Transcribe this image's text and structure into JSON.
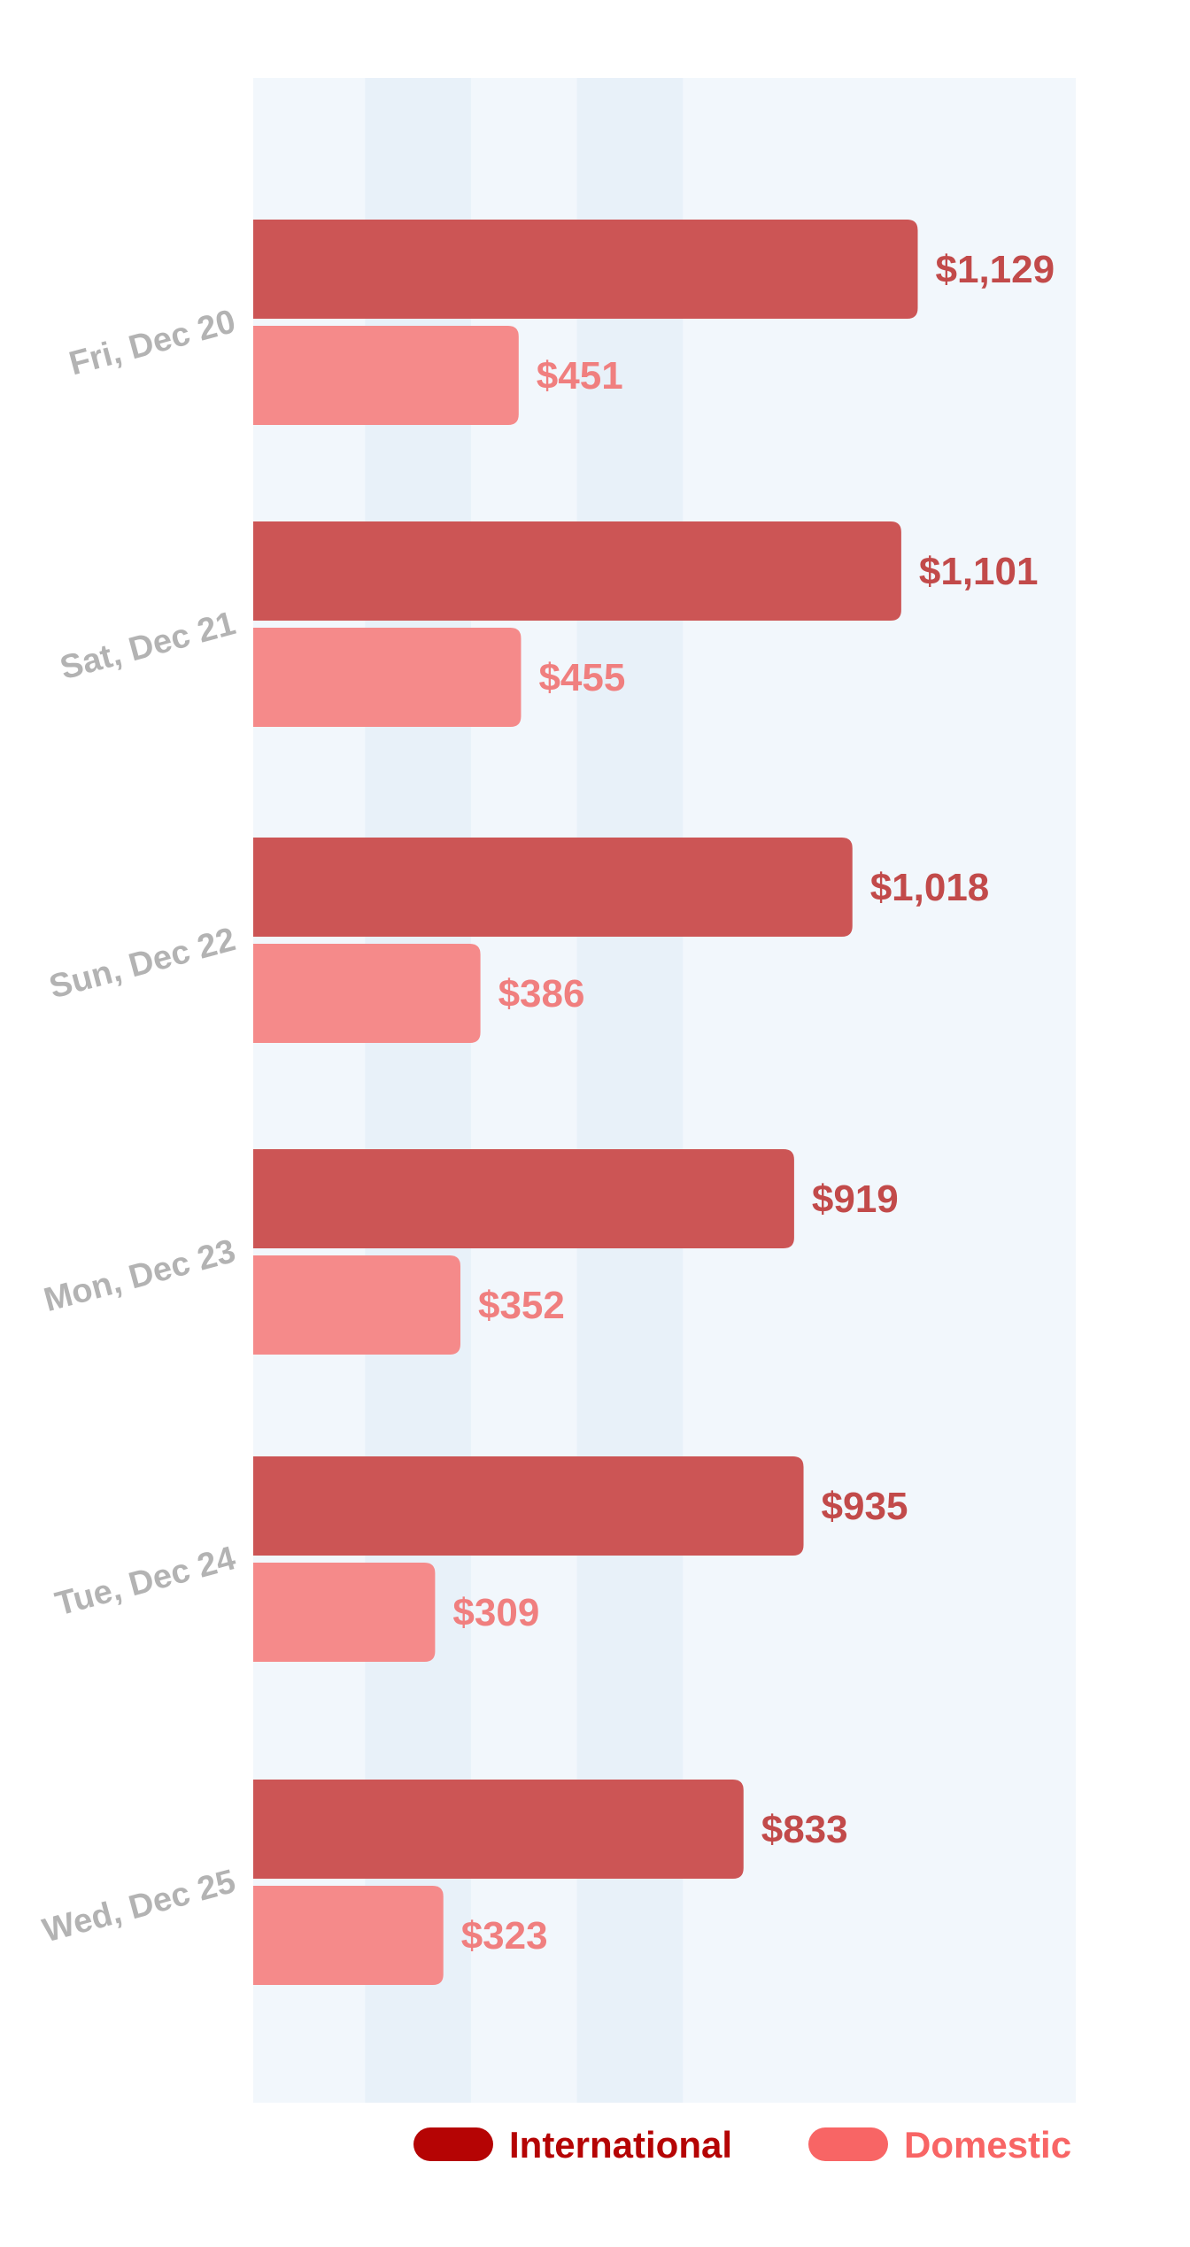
{
  "chart_data": {
    "type": "bar",
    "orientation": "horizontal",
    "categories": [
      "Fri, Dec 20",
      "Sat, Dec 21",
      "Sun, Dec 22",
      "Mon, Dec 23",
      "Tue, Dec 24",
      "Wed, Dec 25"
    ],
    "series": [
      {
        "name": "International",
        "values": [
          1129,
          1101,
          1018,
          919,
          935,
          833
        ],
        "labels": [
          "$1,129",
          "$1,101",
          "$1,018",
          "$919",
          "$935",
          "$833"
        ],
        "bar_color": "#cc5555",
        "label_color": "#c24a4a",
        "legend_color": "#b50404"
      },
      {
        "name": "Domestic",
        "values": [
          451,
          455,
          386,
          352,
          309,
          323
        ],
        "labels": [
          "$451",
          "$455",
          "$386",
          "$352",
          "$309",
          "$323"
        ],
        "bar_color": "#f58a8a",
        "label_color": "#f07f7f",
        "legend_color": "#f86565"
      }
    ],
    "xlim": [
      0,
      1400
    ],
    "grid": true,
    "legend": "bottom-right"
  },
  "colors": {
    "plot_background": "#f2f7fc",
    "band_background": "#e8f1f9",
    "category_label": "#b3b3b3"
  }
}
